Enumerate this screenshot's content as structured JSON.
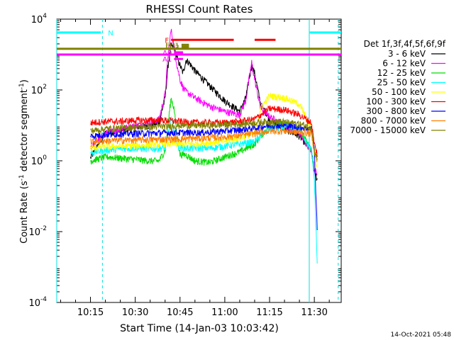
{
  "chart_data": {
    "type": "line",
    "title": "RHESSI Count Rates",
    "xlabel": "Start Time (14-Jan-03 10:03:42)",
    "ylabel_prefix": "Count Rate (s",
    "ylabel_sup1": "-1",
    "ylabel_mid": " detector segment",
    "ylabel_sup2": "-1",
    "ylabel_suffix": ")",
    "yscale": "log",
    "xlim_minutes": [
      3.7,
      99
    ],
    "ylim": [
      0.0001,
      10000
    ],
    "x_ticks": [
      {
        "minute": 15,
        "label": "10:15"
      },
      {
        "minute": 30,
        "label": "10:30"
      },
      {
        "minute": 45,
        "label": "10:45"
      },
      {
        "minute": 60,
        "label": "11:00"
      },
      {
        "minute": 75,
        "label": "11:15"
      },
      {
        "minute": 90,
        "label": "11:30"
      }
    ],
    "y_ticks": [
      {
        "value": 0.0001,
        "base": "10",
        "exp": "-4"
      },
      {
        "value": 0.01,
        "base": "10",
        "exp": "-2"
      },
      {
        "value": 1,
        "base": "10",
        "exp": "0"
      },
      {
        "value": 100,
        "base": "10",
        "exp": "2"
      },
      {
        "value": 10000,
        "base": "10",
        "exp": "4"
      }
    ],
    "legend_title": "Det 1f,3f,4f,5f,6f,9f",
    "legend_position": "right",
    "series": [
      {
        "name": "3 - 6 keV",
        "color": "#000000",
        "x": [
          15,
          20,
          25,
          30,
          35,
          38,
          40,
          41,
          42,
          43,
          44,
          45,
          46,
          47,
          48,
          50,
          55,
          60,
          65,
          67,
          69,
          70,
          72,
          75,
          80,
          85,
          89,
          90,
          91
        ],
        "y": [
          1.2,
          6,
          7,
          9,
          10,
          12,
          60,
          500,
          1800,
          1500,
          800,
          500,
          300,
          700,
          600,
          350,
          130,
          50,
          25,
          60,
          500,
          300,
          40,
          15,
          8,
          5,
          2,
          0.5,
          0.3
        ]
      },
      {
        "name": "6 - 12 keV",
        "color": "#ff00ff",
        "x": [
          15,
          20,
          25,
          30,
          35,
          38,
          40,
          41,
          42,
          43,
          44,
          45,
          46,
          47,
          48,
          50,
          55,
          60,
          65,
          67,
          69,
          70,
          72,
          75,
          80,
          85,
          89,
          90,
          91
        ],
        "y": [
          2.5,
          6,
          8,
          10,
          12,
          15,
          80,
          900,
          5000,
          1800,
          500,
          200,
          120,
          90,
          80,
          60,
          35,
          25,
          20,
          50,
          600,
          200,
          30,
          18,
          10,
          6,
          2,
          0.6,
          0.4
        ]
      },
      {
        "name": "12 - 25 keV",
        "color": "#00dd00",
        "x": [
          15,
          20,
          25,
          30,
          35,
          38,
          40,
          42,
          43,
          44,
          45,
          47,
          50,
          55,
          60,
          65,
          70,
          72,
          75,
          80,
          85,
          89,
          90
        ],
        "y": [
          1.0,
          1.3,
          1.2,
          1.1,
          1.0,
          1.0,
          2,
          60,
          30,
          5,
          1.5,
          1.5,
          1.0,
          0.9,
          1.3,
          1.8,
          3,
          5,
          10,
          11,
          8,
          2,
          0.5
        ]
      },
      {
        "name": "25 - 50 keV",
        "color": "#00ffff",
        "x": [
          15,
          20,
          25,
          30,
          35,
          40,
          42,
          43,
          44,
          45,
          50,
          55,
          60,
          65,
          70,
          72,
          75,
          80,
          85,
          89,
          90,
          91
        ],
        "y": [
          1.7,
          2.0,
          2.2,
          2.3,
          2.2,
          2.3,
          15,
          8,
          3,
          2.3,
          2.3,
          2.3,
          2.6,
          3,
          3.5,
          5,
          8,
          9,
          8,
          2,
          0.3,
          0.001
        ]
      },
      {
        "name": "50 - 100 keV",
        "color": "#ffff00",
        "x": [
          15,
          20,
          25,
          30,
          35,
          40,
          45,
          50,
          55,
          60,
          65,
          70,
          72,
          75,
          80,
          85,
          89,
          90,
          91
        ],
        "y": [
          2.3,
          2.5,
          2.6,
          2.7,
          2.8,
          3,
          3,
          3,
          3.3,
          3.6,
          4.5,
          6,
          30,
          70,
          60,
          40,
          8,
          1.5,
          0.6
        ]
      },
      {
        "name": "100 - 300 keV",
        "color": "#ff0000",
        "x": [
          15,
          20,
          25,
          30,
          35,
          40,
          45,
          50,
          55,
          60,
          65,
          70,
          72,
          75,
          80,
          85,
          89,
          90,
          91
        ],
        "y": [
          12,
          13,
          13,
          14,
          14,
          14,
          13,
          12,
          12,
          12,
          13,
          15,
          20,
          30,
          28,
          20,
          12,
          3,
          1.5
        ]
      },
      {
        "name": "300 - 800 keV",
        "color": "#0000ff",
        "x": [
          15,
          20,
          25,
          30,
          35,
          40,
          45,
          50,
          55,
          60,
          65,
          70,
          72,
          75,
          80,
          85,
          89,
          90,
          91
        ],
        "y": [
          5,
          5.5,
          5.8,
          6,
          6,
          6.2,
          6.3,
          6.2,
          6.5,
          7,
          7.5,
          8.5,
          9,
          10,
          10,
          9,
          8,
          2,
          0.01
        ]
      },
      {
        "name": "800 - 7000 keV",
        "color": "#ff8000",
        "x": [
          15,
          20,
          25,
          30,
          35,
          40,
          45,
          50,
          55,
          60,
          65,
          70,
          72,
          75,
          80,
          85,
          89,
          90,
          91
        ],
        "y": [
          3.5,
          3.7,
          3.8,
          3.9,
          4,
          4.1,
          4.2,
          4.3,
          4.5,
          4.8,
          5.2,
          6,
          6.5,
          7,
          7,
          6.5,
          6,
          2,
          1
        ]
      },
      {
        "name": "7000 - 15000 keV",
        "color": "#808000",
        "x": [
          15,
          20,
          25,
          30,
          35,
          40,
          45,
          50,
          55,
          60,
          65,
          70,
          72,
          75,
          80,
          85,
          89,
          90,
          91
        ],
        "y": [
          7,
          8,
          8.5,
          9,
          9,
          9.5,
          10,
          10,
          10,
          10.5,
          11,
          12,
          12.5,
          13,
          12.5,
          11,
          9,
          2,
          1
        ]
      }
    ],
    "flag_bars": [
      {
        "label": "N",
        "color": "#00ffff",
        "segments": [
          [
            3.7,
            18.5
          ],
          [
            88.3,
            99
          ]
        ],
        "y": 4200
      },
      {
        "label": "F",
        "color": "#ff0000",
        "segments": [
          [
            42,
            63
          ],
          [
            70,
            77
          ]
        ],
        "y": 2600
      },
      {
        "label": "FD1",
        "color": "#808000",
        "segments": [
          [
            45.5,
            48
          ]
        ],
        "y": 1880
      },
      {
        "label": "FD2",
        "color": "#808000",
        "segments": [
          [
            45.5,
            48
          ]
        ],
        "y": 1650
      },
      {
        "label": "A0",
        "color": "#ff00ff",
        "segments": [
          [
            43,
            46
          ]
        ],
        "y": 1150
      },
      {
        "label": "A1",
        "color": "#ff00ff",
        "segments": [
          [
            43,
            46
          ]
        ],
        "y": 750
      }
    ],
    "attenuator_bars": [
      {
        "color": "#808000",
        "y": 1450,
        "x": [
          3.7,
          99
        ]
      },
      {
        "color": "#ff00ff",
        "y": 1000,
        "x": [
          3.7,
          99
        ]
      }
    ],
    "night_boundaries": [
      {
        "minute": 3.7,
        "style": "solid"
      },
      {
        "minute": 19,
        "style": "dashed"
      },
      {
        "minute": 88.3,
        "style": "solid"
      },
      {
        "minute": 98,
        "style": "dashed"
      }
    ]
  },
  "footer": {
    "timestamp": "14-Oct-2021 05:48"
  }
}
